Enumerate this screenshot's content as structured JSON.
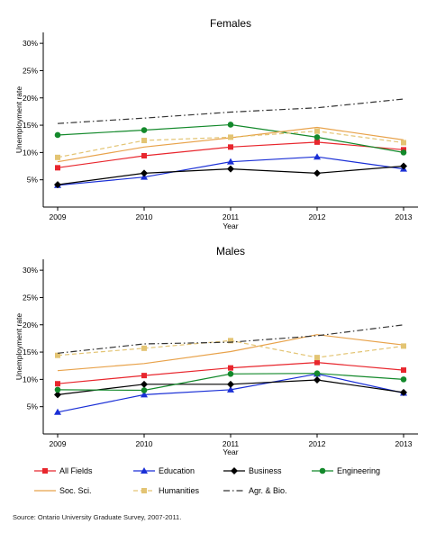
{
  "chart_data": [
    {
      "type": "line",
      "title": "Females",
      "xlabel": "Year",
      "ylabel": "Unemployment rate",
      "x": [
        2009,
        2010,
        2011,
        2012,
        2013
      ],
      "ylim": [
        0,
        32
      ],
      "yticks": [
        "5%",
        "10%",
        "15%",
        "20%",
        "25%",
        "30%"
      ],
      "ytick_values": [
        5,
        10,
        15,
        20,
        25,
        30
      ],
      "series": [
        {
          "name": "All Fields",
          "values": [
            7.2,
            9.4,
            11.0,
            11.9,
            10.5
          ]
        },
        {
          "name": "Education",
          "values": [
            4.0,
            5.5,
            8.3,
            9.2,
            7.0
          ]
        },
        {
          "name": "Business",
          "values": [
            4.1,
            6.2,
            7.0,
            6.2,
            7.5
          ]
        },
        {
          "name": "Engineering",
          "values": [
            13.2,
            14.1,
            15.1,
            12.8,
            10.0
          ]
        },
        {
          "name": "Soc. Sci.",
          "values": [
            8.3,
            11.0,
            12.7,
            14.6,
            12.3
          ]
        },
        {
          "name": "Humanities",
          "values": [
            9.1,
            12.2,
            12.8,
            13.9,
            11.8
          ]
        },
        {
          "name": "Agr. & Bio.",
          "values": [
            15.3,
            16.3,
            17.4,
            18.2,
            19.8
          ]
        }
      ]
    },
    {
      "type": "line",
      "title": "Males",
      "xlabel": "Year",
      "ylabel": "Unemployment rate",
      "x": [
        2009,
        2010,
        2011,
        2012,
        2013
      ],
      "ylim": [
        0,
        32
      ],
      "yticks": [
        "5%",
        "10%",
        "15%",
        "20%",
        "25%",
        "30%"
      ],
      "ytick_values": [
        5,
        10,
        15,
        20,
        25,
        30
      ],
      "series": [
        {
          "name": "All Fields",
          "values": [
            9.2,
            10.7,
            12.1,
            13.1,
            11.7
          ]
        },
        {
          "name": "Education",
          "values": [
            4.0,
            7.2,
            8.1,
            11.0,
            7.5
          ]
        },
        {
          "name": "Business",
          "values": [
            7.2,
            9.1,
            9.1,
            9.9,
            7.6
          ]
        },
        {
          "name": "Engineering",
          "values": [
            8.1,
            8.0,
            11.0,
            11.1,
            10.0
          ]
        },
        {
          "name": "Soc. Sci.",
          "values": [
            11.6,
            12.9,
            15.1,
            18.2,
            16.3
          ]
        },
        {
          "name": "Humanities",
          "values": [
            14.4,
            15.7,
            17.1,
            14.0,
            16.1
          ]
        },
        {
          "name": "Agr. & Bio.",
          "values": [
            14.8,
            16.5,
            16.8,
            18.0,
            20.0
          ]
        }
      ]
    }
  ],
  "legend": [
    {
      "name": "All Fields",
      "color": "#e8262d",
      "marker": "square",
      "dash": "solid"
    },
    {
      "name": "Education",
      "color": "#1a2fd6",
      "marker": "triangle",
      "dash": "solid"
    },
    {
      "name": "Business",
      "color": "#000000",
      "marker": "diamond",
      "dash": "solid"
    },
    {
      "name": "Engineering",
      "color": "#13892b",
      "marker": "circle",
      "dash": "solid"
    },
    {
      "name": "Soc. Sci.",
      "color": "#e8a24a",
      "marker": "none",
      "dash": "solid"
    },
    {
      "name": "Humanities",
      "color": "#e3c473",
      "marker": "square",
      "dash": "dashed"
    },
    {
      "name": "Agr. & Bio.",
      "color": "#333333",
      "marker": "none",
      "dash": "dashdot"
    }
  ],
  "source": "Source: Ontario University Graduate Survey, 2007-2011."
}
